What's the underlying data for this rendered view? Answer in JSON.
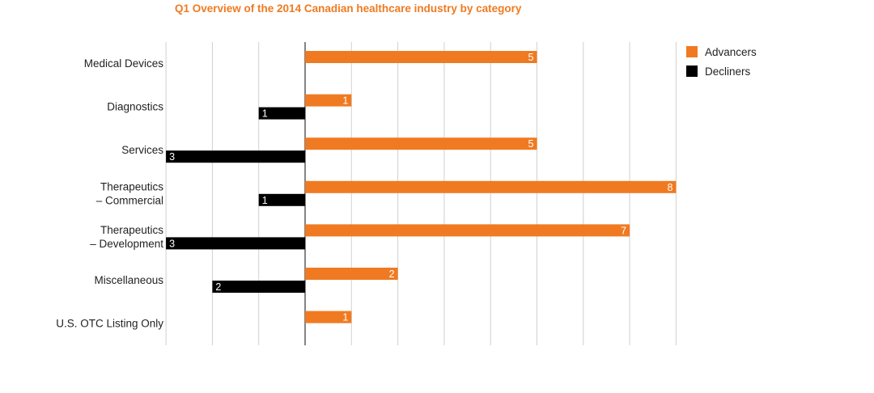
{
  "chart_data": {
    "type": "bar",
    "orientation": "horizontal",
    "title": "Q1 Overview of the 2014 Canadian healthcare industry by category",
    "categories": [
      [
        "Medical Devices"
      ],
      [
        "Diagnostics"
      ],
      [
        "Services"
      ],
      [
        "Therapeutics",
        "– Commercial"
      ],
      [
        "Therapeutics",
        "– Development"
      ],
      [
        "Miscellaneous"
      ],
      [
        "U.S. OTC Listing Only"
      ]
    ],
    "series": [
      {
        "name": "Advancers",
        "color": "#f07a21",
        "values": [
          5,
          1,
          5,
          8,
          7,
          2,
          1
        ]
      },
      {
        "name": "Decliners",
        "color": "#000000",
        "values": [
          0,
          -1,
          -3,
          -1,
          -3,
          -2,
          0
        ]
      }
    ],
    "value_labels": {
      "Advancers": [
        "5",
        "1",
        "5",
        "8",
        "7",
        "2",
        "1"
      ],
      "Decliners": [
        "",
        "1",
        "3",
        "1",
        "3",
        "2",
        ""
      ]
    },
    "xlim": [
      -3,
      8
    ],
    "grid": true,
    "legend_position": "top-right"
  }
}
